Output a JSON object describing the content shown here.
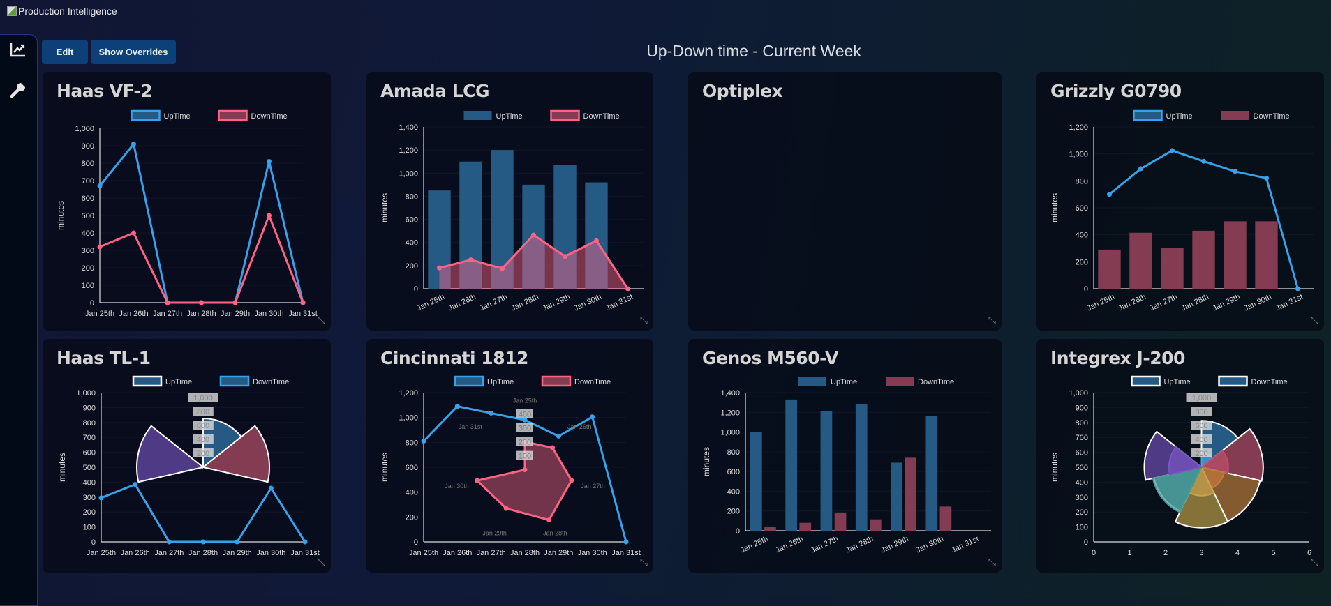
{
  "app": {
    "title": "Production Intelligence"
  },
  "toolbar": {
    "edit": "Edit",
    "overrides": "Show Overrides"
  },
  "page_title": "Up-Down time - Current Week",
  "sidebar": {
    "items": [
      {
        "icon": "chart-line-icon"
      },
      {
        "icon": "wrench-icon"
      }
    ]
  },
  "colors": {
    "uptime_line": "#36a2eb",
    "uptime_fill": "#255a85",
    "downtime_line": "#ff6384",
    "downtime_fill": "#843c52",
    "button": "#0d3f78"
  },
  "chart_data": [
    {
      "title": "Haas VF-2",
      "type": "line",
      "ylabel": "minutes",
      "ylim": [
        0,
        1000
      ],
      "ystep": 100,
      "categories": [
        "Jan 25th",
        "Jan 26th",
        "Jan 27th",
        "Jan 28th",
        "Jan 29th",
        "Jan 30th",
        "Jan 31st"
      ],
      "series": [
        {
          "name": "UpTime",
          "kind": "line",
          "values": [
            670,
            910,
            0,
            0,
            0,
            810,
            0
          ],
          "color": "#36a2eb",
          "legend_fill": "#255a85",
          "legend_border": "#36a2eb"
        },
        {
          "name": "DownTime",
          "kind": "line",
          "values": [
            320,
            400,
            0,
            0,
            0,
            500,
            0
          ],
          "color": "#ff6384",
          "legend_fill": "#843c52",
          "legend_border": "#ff6384"
        }
      ]
    },
    {
      "title": "Amada LCG",
      "type": "bar",
      "ylabel": "minutes",
      "ylim": [
        0,
        1400
      ],
      "ystep": 200,
      "categories": [
        "Jan 25th",
        "Jan 26th",
        "Jan 27th",
        "Jan 28th",
        "Jan 29th",
        "Jan 30th",
        "Jan 31st"
      ],
      "series": [
        {
          "name": "UpTime",
          "kind": "bar",
          "values": [
            850,
            1100,
            1200,
            900,
            1070,
            920,
            0
          ],
          "color": "#255a85",
          "legend_fill": "#255a85",
          "legend_border": ""
        },
        {
          "name": "DownTime",
          "kind": "area",
          "values": [
            180,
            250,
            175,
            465,
            280,
            415,
            0
          ],
          "color": "#ff6384",
          "legend_fill": "#843c52",
          "legend_border": "#ff6384"
        }
      ]
    },
    {
      "title": "Optiplex",
      "type": "empty"
    },
    {
      "title": "Grizzly G0790",
      "type": "bar",
      "ylabel": "minutes",
      "ylim": [
        0,
        1200
      ],
      "ystep": 200,
      "categories": [
        "Jan 25th",
        "Jan 26th",
        "Jan 27th",
        "Jan 28th",
        "Jan 29th",
        "Jan 30th",
        "Jan 31st"
      ],
      "series": [
        {
          "name": "UpTime",
          "kind": "line",
          "values": [
            700,
            890,
            1025,
            945,
            870,
            820,
            0
          ],
          "color": "#36a2eb",
          "legend_fill": "#255a85",
          "legend_border": "#36a2eb"
        },
        {
          "name": "DownTime",
          "kind": "bar",
          "values": [
            290,
            415,
            300,
            430,
            500,
            500,
            0
          ],
          "color": "#843c52",
          "legend_fill": "#843c52",
          "legend_border": ""
        }
      ]
    },
    {
      "title": "Haas TL-1",
      "type": "line",
      "ylabel": "minutes",
      "ylim": [
        0,
        1000
      ],
      "ystep": 100,
      "categories": [
        "Jan 25th",
        "Jan 26th",
        "Jan 27th",
        "Jan 28th",
        "Jan 29th",
        "Jan 30th",
        "Jan 31st"
      ],
      "series": [
        {
          "name": "UpTime",
          "kind": "polar",
          "values": [
            700,
            950,
            0,
            0,
            0,
            950,
            0
          ],
          "color": "#255a85",
          "legend_fill": "#255a85",
          "legend_border": "#ffffff"
        },
        {
          "name": "DownTime",
          "kind": "line",
          "values": [
            295,
            385,
            0,
            0,
            0,
            360,
            0
          ],
          "color": "#36a2eb",
          "legend_fill": "#255a85",
          "legend_border": "#36a2eb"
        }
      ],
      "overlay": {
        "type": "polararea",
        "center": [
          "Jan 28th",
          500
        ],
        "ticks": [
          "200",
          "400",
          "600",
          "800",
          "1,000"
        ],
        "slice_colors": [
          "#255a85",
          "#843c52",
          "#845a30",
          "#857238",
          "#3a8585",
          "#4f3a85",
          "#666666"
        ]
      }
    },
    {
      "title": "Cincinnati 1812",
      "type": "line",
      "ylabel": "minutes",
      "ylim": [
        0,
        1200
      ],
      "ystep": 200,
      "categories": [
        "Jan 25th",
        "Jan 26th",
        "Jan 27th",
        "Jan 28th",
        "Jan 29th",
        "Jan 30th",
        "Jan 31st"
      ],
      "series": [
        {
          "name": "UpTime",
          "kind": "line",
          "values": [
            810,
            1090,
            1035,
            980,
            850,
            1005,
            0
          ],
          "color": "#36a2eb",
          "legend_fill": "#255a85",
          "legend_border": "#36a2eb"
        },
        {
          "name": "DownTime",
          "kind": "radar",
          "values": [
            200,
            253,
            343,
            400,
            308,
            350,
            0
          ],
          "color": "#ff6384",
          "legend_fill": "#843c52",
          "legend_border": "#ff6384"
        }
      ],
      "overlay": {
        "type": "radar",
        "center": [
          "Jan 28th",
          580
        ],
        "ticks": [
          "100",
          "200",
          "300",
          "400"
        ],
        "point_labels": [
          "Jan 25th",
          "Jan 26th",
          "Jan 27th",
          "Jan 28th",
          "Jan 29th",
          "Jan 30th",
          "Jan 31st"
        ]
      }
    },
    {
      "title": "Genos M560-V",
      "type": "bar",
      "ylabel": "minutes",
      "ylim": [
        0,
        1400
      ],
      "ystep": 200,
      "categories": [
        "Jan 25th",
        "Jan 26th",
        "Jan 27th",
        "Jan 28th",
        "Jan 29th",
        "Jan 30th",
        "Jan 31st"
      ],
      "series": [
        {
          "name": "UpTime",
          "kind": "groupbar",
          "values": [
            1000,
            1330,
            1210,
            1280,
            690,
            1160,
            0
          ],
          "color": "#255a85",
          "legend_fill": "#255a85",
          "legend_border": ""
        },
        {
          "name": "DownTime",
          "kind": "groupbar",
          "values": [
            35,
            80,
            185,
            115,
            740,
            245,
            0
          ],
          "color": "#843c52",
          "legend_fill": "#843c52",
          "legend_border": ""
        }
      ]
    },
    {
      "title": "Integrex J-200",
      "type": "numeric",
      "ylabel": "minutes",
      "ylim": [
        0,
        1000
      ],
      "ystep": 100,
      "xlim": [
        0,
        6
      ],
      "categories": [
        "0",
        "1",
        "2",
        "3",
        "4",
        "5",
        "6"
      ],
      "series": [
        {
          "name": "UpTime",
          "kind": "polar",
          "values": [
            667,
            883,
            860,
            867,
            700,
            820,
            0
          ],
          "color": "#255a85",
          "legend_fill": "#255a85",
          "legend_border": "#ffffff"
        },
        {
          "name": "DownTime",
          "kind": "polar-inner",
          "values": [
            200,
            383,
            333,
            407,
            717,
            467,
            0
          ],
          "color": "#255a85",
          "legend_fill": "#255a85",
          "legend_border": "#ffffff"
        }
      ],
      "overlay": {
        "type": "polararea",
        "center": [
          3,
          500
        ],
        "ticks": [
          "200",
          "400",
          "600",
          "800",
          "1,000"
        ],
        "slice_colors": [
          "#255a85",
          "#843c52",
          "#845a30",
          "#857238",
          "#3a8585",
          "#4f3a85",
          "#666666"
        ],
        "inner_colors": [
          "#4aa3e0",
          "#c04f6c",
          "#c47a3a",
          "#c9a24e",
          "#4a9a9a",
          "#7a55c4",
          "#888888"
        ]
      }
    }
  ]
}
